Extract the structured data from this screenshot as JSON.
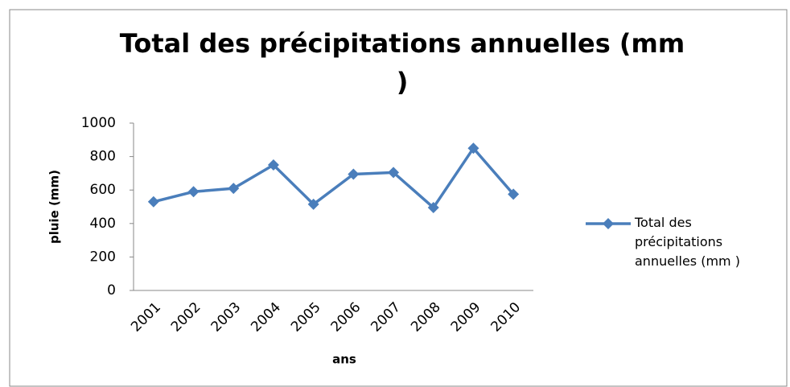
{
  "chart_data": {
    "type": "line",
    "title": "Total des précipitations annuelles (mm )",
    "x_label": "ans",
    "y_label": "pluie (mm)",
    "categories": [
      "2001",
      "2002",
      "2003",
      "2004",
      "2005",
      "2006",
      "2007",
      "2008",
      "2009",
      "2010"
    ],
    "series": [
      {
        "name": "Total des précipitations annuelles (mm )",
        "color": "#4a7ebb",
        "values": [
          530,
          590,
          610,
          750,
          515,
          695,
          705,
          495,
          850,
          575
        ]
      }
    ],
    "ylim": [
      0,
      1000
    ],
    "yticks": [
      0,
      200,
      400,
      600,
      800,
      1000
    ],
    "grid": false,
    "legend": "right",
    "marker": "diamond"
  }
}
